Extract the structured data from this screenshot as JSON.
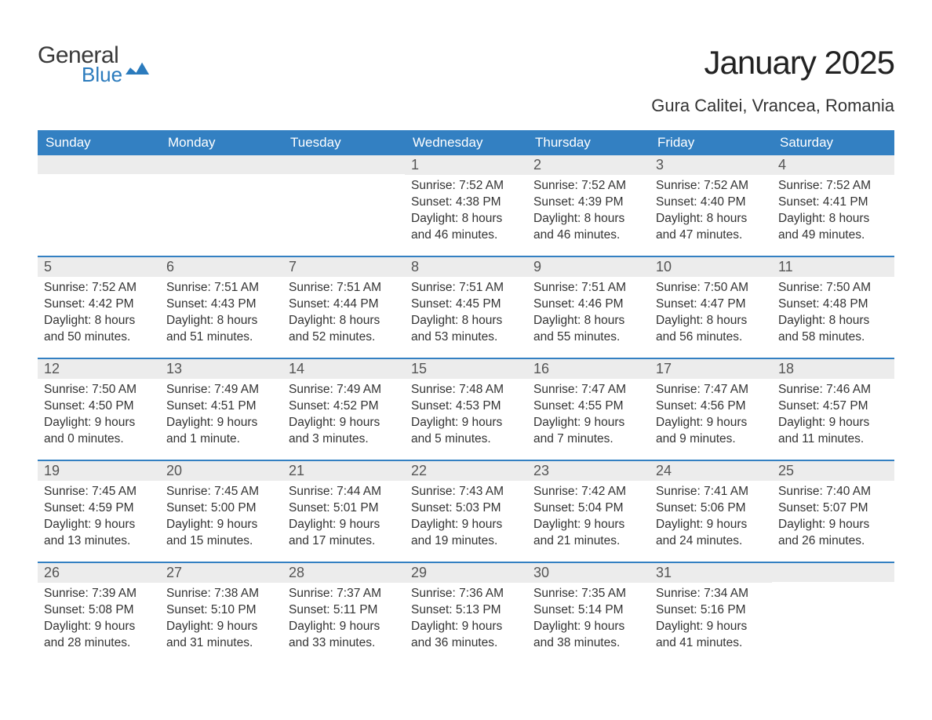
{
  "brand": {
    "general": "General",
    "blue": "Blue"
  },
  "title": "January 2025",
  "location": "Gura Calitei, Vrancea, Romania",
  "colors": {
    "header_bg": "#3380c2",
    "header_text": "#ffffff",
    "date_bg": "#ececec",
    "rule": "#3380c2",
    "body_text": "#333333",
    "logo_blue": "#2b7bbd"
  },
  "fonts": {
    "title_pt": 42,
    "location_pt": 22,
    "dayheader_pt": 17,
    "date_pt": 18,
    "body_pt": 15.5
  },
  "day_labels": [
    "Sunday",
    "Monday",
    "Tuesday",
    "Wednesday",
    "Thursday",
    "Friday",
    "Saturday"
  ],
  "weeks": [
    [
      {
        "date": "",
        "sunrise": "",
        "sunset": "",
        "daylight": ""
      },
      {
        "date": "",
        "sunrise": "",
        "sunset": "",
        "daylight": ""
      },
      {
        "date": "",
        "sunrise": "",
        "sunset": "",
        "daylight": ""
      },
      {
        "date": "1",
        "sunrise": "Sunrise: 7:52 AM",
        "sunset": "Sunset: 4:38 PM",
        "daylight": "Daylight: 8 hours and 46 minutes."
      },
      {
        "date": "2",
        "sunrise": "Sunrise: 7:52 AM",
        "sunset": "Sunset: 4:39 PM",
        "daylight": "Daylight: 8 hours and 46 minutes."
      },
      {
        "date": "3",
        "sunrise": "Sunrise: 7:52 AM",
        "sunset": "Sunset: 4:40 PM",
        "daylight": "Daylight: 8 hours and 47 minutes."
      },
      {
        "date": "4",
        "sunrise": "Sunrise: 7:52 AM",
        "sunset": "Sunset: 4:41 PM",
        "daylight": "Daylight: 8 hours and 49 minutes."
      }
    ],
    [
      {
        "date": "5",
        "sunrise": "Sunrise: 7:52 AM",
        "sunset": "Sunset: 4:42 PM",
        "daylight": "Daylight: 8 hours and 50 minutes."
      },
      {
        "date": "6",
        "sunrise": "Sunrise: 7:51 AM",
        "sunset": "Sunset: 4:43 PM",
        "daylight": "Daylight: 8 hours and 51 minutes."
      },
      {
        "date": "7",
        "sunrise": "Sunrise: 7:51 AM",
        "sunset": "Sunset: 4:44 PM",
        "daylight": "Daylight: 8 hours and 52 minutes."
      },
      {
        "date": "8",
        "sunrise": "Sunrise: 7:51 AM",
        "sunset": "Sunset: 4:45 PM",
        "daylight": "Daylight: 8 hours and 53 minutes."
      },
      {
        "date": "9",
        "sunrise": "Sunrise: 7:51 AM",
        "sunset": "Sunset: 4:46 PM",
        "daylight": "Daylight: 8 hours and 55 minutes."
      },
      {
        "date": "10",
        "sunrise": "Sunrise: 7:50 AM",
        "sunset": "Sunset: 4:47 PM",
        "daylight": "Daylight: 8 hours and 56 minutes."
      },
      {
        "date": "11",
        "sunrise": "Sunrise: 7:50 AM",
        "sunset": "Sunset: 4:48 PM",
        "daylight": "Daylight: 8 hours and 58 minutes."
      }
    ],
    [
      {
        "date": "12",
        "sunrise": "Sunrise: 7:50 AM",
        "sunset": "Sunset: 4:50 PM",
        "daylight": "Daylight: 9 hours and 0 minutes."
      },
      {
        "date": "13",
        "sunrise": "Sunrise: 7:49 AM",
        "sunset": "Sunset: 4:51 PM",
        "daylight": "Daylight: 9 hours and 1 minute."
      },
      {
        "date": "14",
        "sunrise": "Sunrise: 7:49 AM",
        "sunset": "Sunset: 4:52 PM",
        "daylight": "Daylight: 9 hours and 3 minutes."
      },
      {
        "date": "15",
        "sunrise": "Sunrise: 7:48 AM",
        "sunset": "Sunset: 4:53 PM",
        "daylight": "Daylight: 9 hours and 5 minutes."
      },
      {
        "date": "16",
        "sunrise": "Sunrise: 7:47 AM",
        "sunset": "Sunset: 4:55 PM",
        "daylight": "Daylight: 9 hours and 7 minutes."
      },
      {
        "date": "17",
        "sunrise": "Sunrise: 7:47 AM",
        "sunset": "Sunset: 4:56 PM",
        "daylight": "Daylight: 9 hours and 9 minutes."
      },
      {
        "date": "18",
        "sunrise": "Sunrise: 7:46 AM",
        "sunset": "Sunset: 4:57 PM",
        "daylight": "Daylight: 9 hours and 11 minutes."
      }
    ],
    [
      {
        "date": "19",
        "sunrise": "Sunrise: 7:45 AM",
        "sunset": "Sunset: 4:59 PM",
        "daylight": "Daylight: 9 hours and 13 minutes."
      },
      {
        "date": "20",
        "sunrise": "Sunrise: 7:45 AM",
        "sunset": "Sunset: 5:00 PM",
        "daylight": "Daylight: 9 hours and 15 minutes."
      },
      {
        "date": "21",
        "sunrise": "Sunrise: 7:44 AM",
        "sunset": "Sunset: 5:01 PM",
        "daylight": "Daylight: 9 hours and 17 minutes."
      },
      {
        "date": "22",
        "sunrise": "Sunrise: 7:43 AM",
        "sunset": "Sunset: 5:03 PM",
        "daylight": "Daylight: 9 hours and 19 minutes."
      },
      {
        "date": "23",
        "sunrise": "Sunrise: 7:42 AM",
        "sunset": "Sunset: 5:04 PM",
        "daylight": "Daylight: 9 hours and 21 minutes."
      },
      {
        "date": "24",
        "sunrise": "Sunrise: 7:41 AM",
        "sunset": "Sunset: 5:06 PM",
        "daylight": "Daylight: 9 hours and 24 minutes."
      },
      {
        "date": "25",
        "sunrise": "Sunrise: 7:40 AM",
        "sunset": "Sunset: 5:07 PM",
        "daylight": "Daylight: 9 hours and 26 minutes."
      }
    ],
    [
      {
        "date": "26",
        "sunrise": "Sunrise: 7:39 AM",
        "sunset": "Sunset: 5:08 PM",
        "daylight": "Daylight: 9 hours and 28 minutes."
      },
      {
        "date": "27",
        "sunrise": "Sunrise: 7:38 AM",
        "sunset": "Sunset: 5:10 PM",
        "daylight": "Daylight: 9 hours and 31 minutes."
      },
      {
        "date": "28",
        "sunrise": "Sunrise: 7:37 AM",
        "sunset": "Sunset: 5:11 PM",
        "daylight": "Daylight: 9 hours and 33 minutes."
      },
      {
        "date": "29",
        "sunrise": "Sunrise: 7:36 AM",
        "sunset": "Sunset: 5:13 PM",
        "daylight": "Daylight: 9 hours and 36 minutes."
      },
      {
        "date": "30",
        "sunrise": "Sunrise: 7:35 AM",
        "sunset": "Sunset: 5:14 PM",
        "daylight": "Daylight: 9 hours and 38 minutes."
      },
      {
        "date": "31",
        "sunrise": "Sunrise: 7:34 AM",
        "sunset": "Sunset: 5:16 PM",
        "daylight": "Daylight: 9 hours and 41 minutes."
      },
      {
        "date": "",
        "sunrise": "",
        "sunset": "",
        "daylight": ""
      }
    ]
  ]
}
